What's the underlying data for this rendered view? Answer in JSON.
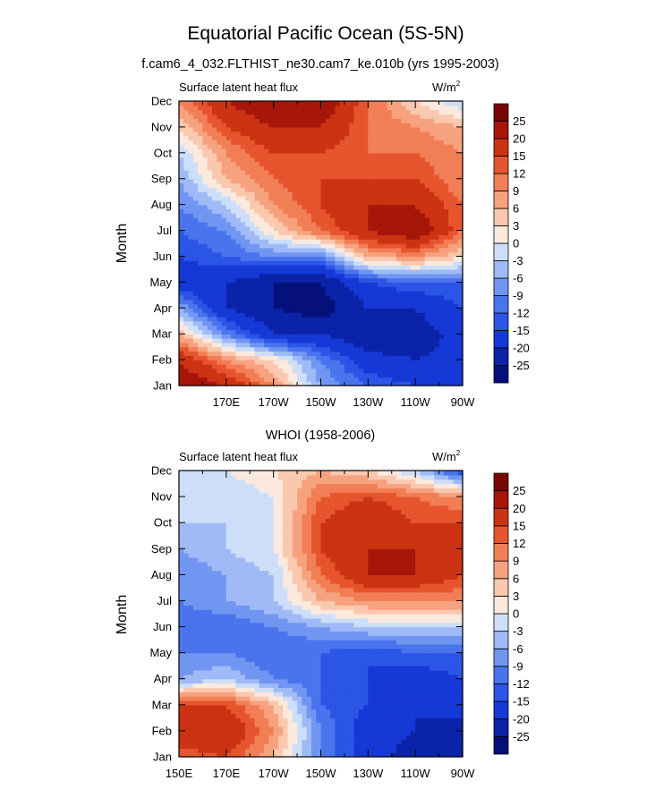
{
  "title": "Equatorial Pacific Ocean (5S-5N)",
  "chart_data": [
    {
      "type": "heatmap",
      "title": "f.cam6_4_032.FLTHIST_ne30.cam7_ke.010b (yrs 1995-2003)",
      "variable": "Surface latent heat flux",
      "units": "W/m",
      "units_sup": "2",
      "ylabel": "Month",
      "xlabel": "",
      "xlim": [
        150,
        270
      ],
      "x_ticks": [
        "170E",
        "170W",
        "150W",
        "130W",
        "110W",
        "90W"
      ],
      "y_ticks": [
        "Jan",
        "Feb",
        "Mar",
        "Apr",
        "May",
        "Jun",
        "Jul",
        "Aug",
        "Sep",
        "Oct",
        "Nov",
        "Dec"
      ],
      "x_lon": [
        150,
        170,
        190,
        210,
        230,
        250,
        270
      ],
      "values": [
        [
          25,
          20,
          9,
          -6,
          -12,
          -15,
          -18
        ],
        [
          20,
          9,
          3,
          -9,
          -18,
          -20,
          -18
        ],
        [
          6,
          -9,
          -20,
          -20,
          -25,
          -23,
          -18
        ],
        [
          -6,
          -20,
          -25,
          -28,
          -20,
          -20,
          -15
        ],
        [
          -18,
          -20,
          -25,
          -25,
          -15,
          -12,
          -12
        ],
        [
          -15,
          -12,
          -9,
          -9,
          6,
          9,
          3
        ],
        [
          -12,
          -9,
          3,
          12,
          20,
          25,
          12
        ],
        [
          -9,
          -3,
          9,
          15,
          20,
          20,
          12
        ],
        [
          -6,
          6,
          12,
          15,
          15,
          15,
          9
        ],
        [
          -3,
          9,
          15,
          15,
          12,
          12,
          9
        ],
        [
          3,
          15,
          20,
          20,
          12,
          9,
          6
        ],
        [
          9,
          20,
          25,
          25,
          12,
          3,
          -3
        ]
      ]
    },
    {
      "type": "heatmap",
      "title": "WHOI (1958-2006)",
      "variable": "Surface latent heat flux",
      "units": "W/m",
      "units_sup": "2",
      "ylabel": "Month",
      "xlabel": "",
      "xlim": [
        150,
        270
      ],
      "x_ticks": [
        "150E",
        "170E",
        "170W",
        "150W",
        "130W",
        "110W",
        "90W"
      ],
      "y_ticks": [
        "Jan",
        "Feb",
        "Mar",
        "Apr",
        "May",
        "Jun",
        "Jul",
        "Aug",
        "Sep",
        "Oct",
        "Nov",
        "Dec"
      ],
      "x_lon": [
        150,
        170,
        190,
        210,
        230,
        250,
        270
      ],
      "values": [
        [
          12,
          15,
          6,
          -9,
          -18,
          -22,
          -25
        ],
        [
          20,
          20,
          9,
          -9,
          -18,
          -20,
          -22
        ],
        [
          15,
          15,
          6,
          -12,
          -15,
          -20,
          -18
        ],
        [
          -6,
          -3,
          -9,
          -12,
          -15,
          -18,
          -15
        ],
        [
          -9,
          -9,
          -12,
          -12,
          -15,
          -12,
          -12
        ],
        [
          -12,
          -12,
          -9,
          -6,
          -3,
          -3,
          -3
        ],
        [
          -9,
          -6,
          -3,
          6,
          9,
          9,
          9
        ],
        [
          -9,
          -6,
          -3,
          12,
          20,
          20,
          15
        ],
        [
          -6,
          -3,
          0,
          15,
          20,
          20,
          20
        ],
        [
          -3,
          -3,
          0,
          15,
          20,
          15,
          15
        ],
        [
          -3,
          -3,
          0,
          12,
          15,
          12,
          9
        ],
        [
          0,
          0,
          3,
          6,
          3,
          -3,
          -15
        ]
      ]
    }
  ],
  "colorbar": {
    "levels": [
      -25,
      -20,
      -15,
      -12,
      -9,
      -6,
      -3,
      0,
      3,
      6,
      9,
      12,
      15,
      20,
      25
    ],
    "labels": [
      "-25",
      "-20",
      "-15",
      "-12",
      "-9",
      "-6",
      "-3",
      "0",
      "3",
      "6",
      "9",
      "12",
      "15",
      "20",
      "25"
    ],
    "colors": [
      "#05107a",
      "#0a23a8",
      "#1538d6",
      "#2a55e6",
      "#4a74ee",
      "#7196f2",
      "#9fbaf6",
      "#cddff8",
      "#fce9de",
      "#fac8ae",
      "#f7a27f",
      "#f27e56",
      "#e6552e",
      "#cc3313",
      "#a61609",
      "#7a0505"
    ]
  }
}
